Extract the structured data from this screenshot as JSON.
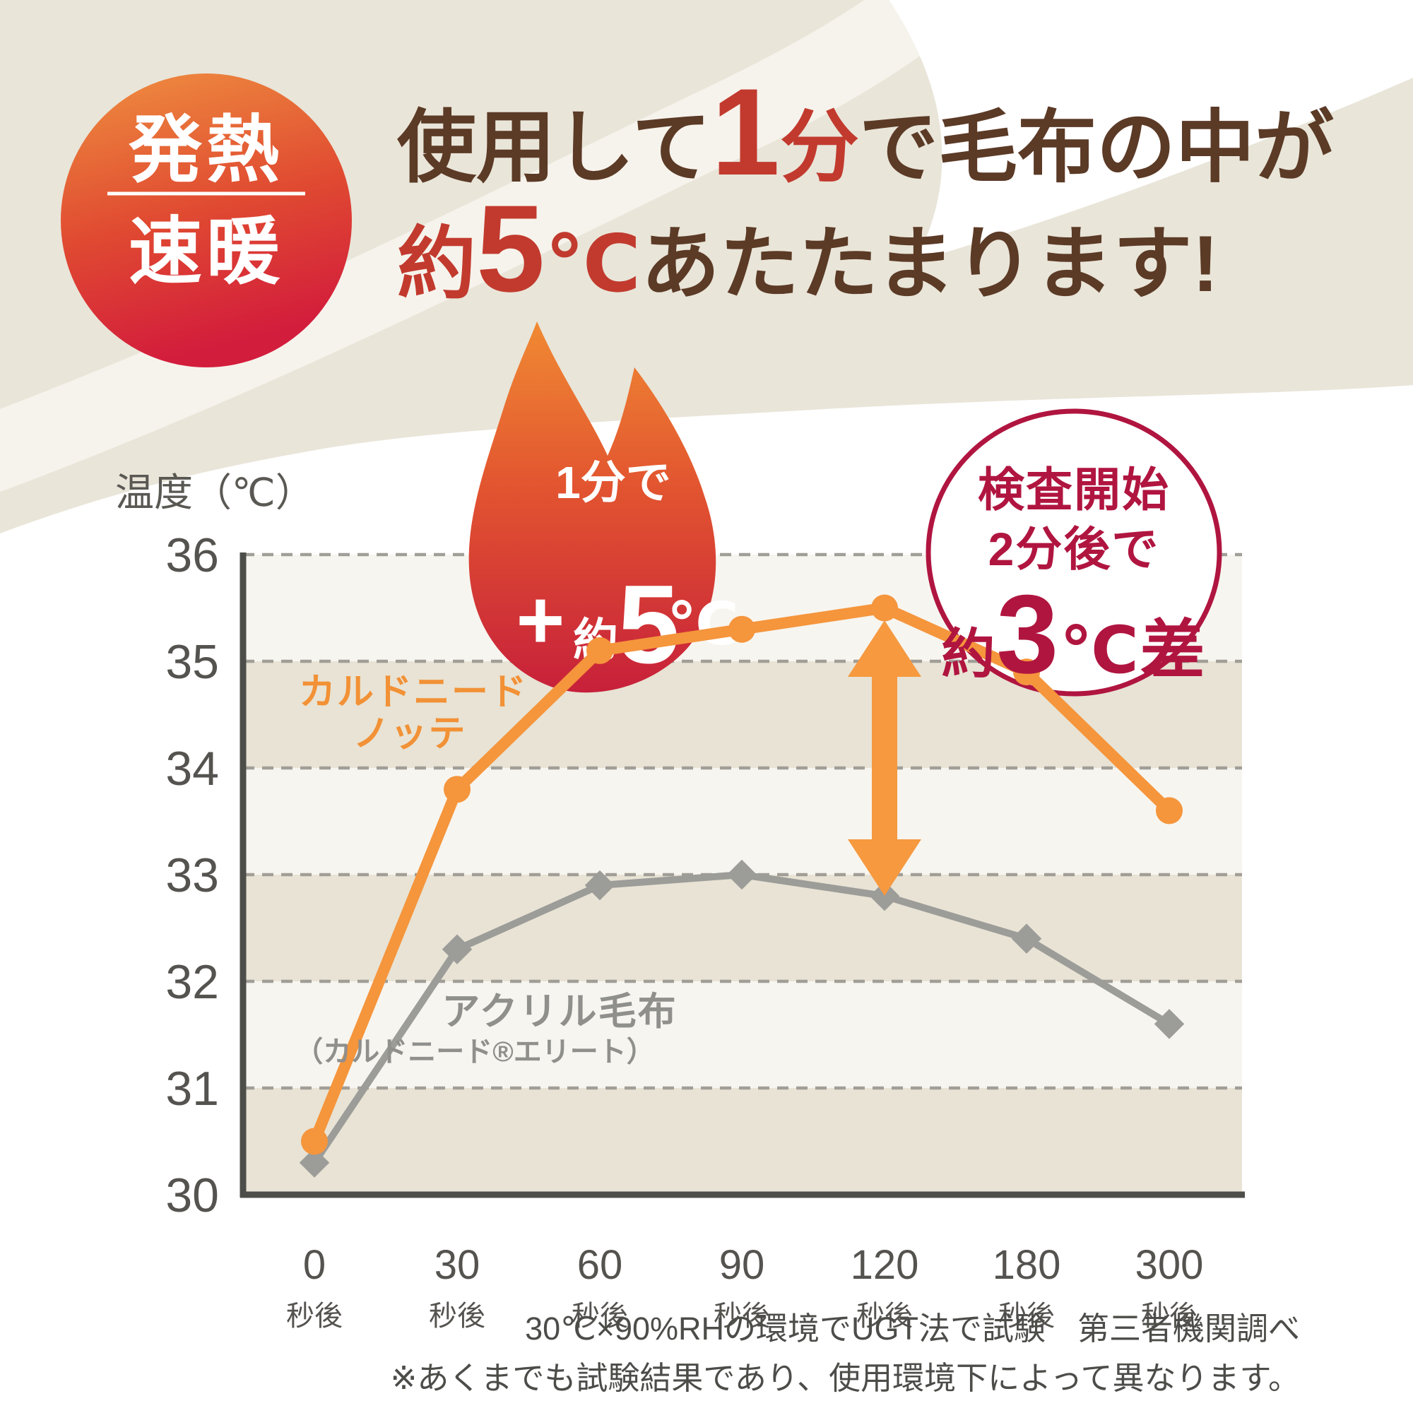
{
  "badge": {
    "top": "発熱",
    "bottom": "速暖"
  },
  "headline": {
    "l1_brown1": "使用して",
    "l1_red_big": "1",
    "l1_red": "分",
    "l1_brown2": "で毛布の中が",
    "l2_red1": "約",
    "l2_red_big": "5",
    "l2_red2": "℃",
    "l2_brown": "あたたまります!"
  },
  "flame": {
    "l1": "1分で",
    "plus": "+",
    "yaku": "約",
    "big": "5",
    "deg": "℃"
  },
  "diff_circle": {
    "l1": "検査開始",
    "l2": "2分後で",
    "yaku": "約",
    "big": "3",
    "suffix": "℃差"
  },
  "legend": {
    "orange_l1": "カルドニード",
    "orange_l2": "ノッテ",
    "gray_l1": "アクリル毛布",
    "gray_l2": "（カルドニード®エリート）"
  },
  "notes": {
    "l1": "30℃×90%RHの環境でUGT法で試験　第三者機関調べ",
    "l2": "※あくまでも試験結果であり、使用環境下によって異なります。"
  },
  "chart_data": {
    "type": "line",
    "title": "使用して1分で毛布の中が約5℃あたたまります!",
    "ylabel": "温度（℃）",
    "x_unit": "秒後",
    "categories": [
      "0",
      "30",
      "60",
      "90",
      "120",
      "180",
      "300"
    ],
    "ylim": [
      30,
      36
    ],
    "yticks": [
      36,
      35,
      34,
      33,
      32,
      31,
      30
    ],
    "grid": "dashed-horizontal",
    "series": [
      {
        "name": "カルドニード ノッテ",
        "color": "#f5953c",
        "marker": "circle",
        "values": [
          30.5,
          33.8,
          35.1,
          35.3,
          35.5,
          34.9,
          33.6
        ]
      },
      {
        "name": "アクリル毛布（カルドニード®エリート）",
        "color": "#9c9c99",
        "marker": "diamond",
        "values": [
          30.3,
          32.3,
          32.9,
          33.0,
          32.8,
          32.4,
          31.6
        ]
      }
    ],
    "annotations": [
      {
        "type": "flame-badge",
        "text": "1分で +約5℃"
      },
      {
        "type": "circle-badge",
        "text": "検査開始2分後で約3℃差"
      },
      {
        "type": "difference-arrow",
        "at_category": "120",
        "between": [
          35.5,
          32.8
        ]
      }
    ]
  }
}
